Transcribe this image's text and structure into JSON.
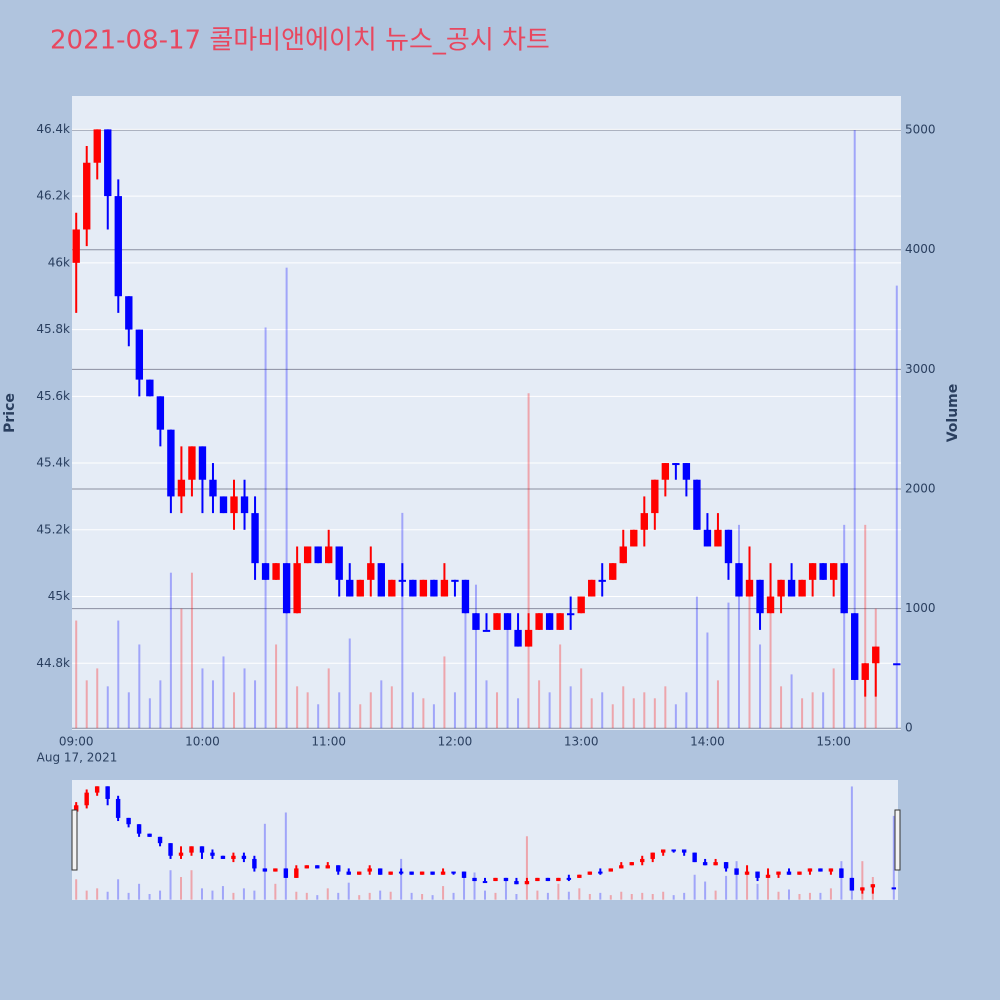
{
  "chart_data": {
    "type": "candlestick",
    "title": "2021-08-17 콜마비앤에이치 뉴스_공시 차트",
    "y_axis_label": "Price",
    "y2_axis_label": "Volume",
    "x_date_label": "Aug 17, 2021",
    "increasing_color": "#ff0000",
    "decreasing_color": "#0000ff",
    "x": [
      "2021-08-17 09:00",
      "2021-08-17 09:05",
      "2021-08-17 09:10",
      "2021-08-17 09:15",
      "2021-08-17 09:20",
      "2021-08-17 09:25",
      "2021-08-17 09:30",
      "2021-08-17 09:35",
      "2021-08-17 09:40",
      "2021-08-17 09:45",
      "2021-08-17 09:50",
      "2021-08-17 09:55",
      "2021-08-17 10:00",
      "2021-08-17 10:05",
      "2021-08-17 10:10",
      "2021-08-17 10:15",
      "2021-08-17 10:20",
      "2021-08-17 10:25",
      "2021-08-17 10:30",
      "2021-08-17 10:35",
      "2021-08-17 10:40",
      "2021-08-17 10:45",
      "2021-08-17 10:50",
      "2021-08-17 10:55",
      "2021-08-17 11:00",
      "2021-08-17 11:05",
      "2021-08-17 11:10",
      "2021-08-17 11:15",
      "2021-08-17 11:20",
      "2021-08-17 11:25",
      "2021-08-17 11:30",
      "2021-08-17 11:35",
      "2021-08-17 11:40",
      "2021-08-17 11:45",
      "2021-08-17 11:50",
      "2021-08-17 11:55",
      "2021-08-17 12:00",
      "2021-08-17 12:05",
      "2021-08-17 12:10",
      "2021-08-17 12:15",
      "2021-08-17 12:20",
      "2021-08-17 12:25",
      "2021-08-17 12:30",
      "2021-08-17 12:35",
      "2021-08-17 12:40",
      "2021-08-17 12:45",
      "2021-08-17 12:50",
      "2021-08-17 12:55",
      "2021-08-17 13:00",
      "2021-08-17 13:05",
      "2021-08-17 13:10",
      "2021-08-17 13:15",
      "2021-08-17 13:20",
      "2021-08-17 13:25",
      "2021-08-17 13:30",
      "2021-08-17 13:35",
      "2021-08-17 13:40",
      "2021-08-17 13:45",
      "2021-08-17 13:50",
      "2021-08-17 13:55",
      "2021-08-17 14:00",
      "2021-08-17 14:05",
      "2021-08-17 14:10",
      "2021-08-17 14:15",
      "2021-08-17 14:20",
      "2021-08-17 14:25",
      "2021-08-17 14:30",
      "2021-08-17 14:35",
      "2021-08-17 14:40",
      "2021-08-17 14:45",
      "2021-08-17 14:50",
      "2021-08-17 14:55",
      "2021-08-17 15:00",
      "2021-08-17 15:05",
      "2021-08-17 15:10",
      "2021-08-17 15:15",
      "2021-08-17 15:20",
      "2021-08-17 15:30"
    ],
    "open": [
      46000,
      46100,
      46300,
      46400,
      46200,
      45900,
      45800,
      45650,
      45600,
      45500,
      45300,
      45350,
      45450,
      45350,
      45300,
      45250,
      45300,
      45250,
      45100,
      45050,
      45100,
      44950,
      45100,
      45150,
      45100,
      45150,
      45050,
      45000,
      45050,
      45100,
      45000,
      45050,
      45050,
      45000,
      45050,
      45000,
      45050,
      45050,
      44950,
      44900,
      44900,
      44950,
      44900,
      44850,
      44900,
      44950,
      44900,
      44950,
      44950,
      45000,
      45050,
      45050,
      45100,
      45150,
      45200,
      45250,
      45350,
      45400,
      45400,
      45350,
      45200,
      45150,
      45200,
      45100,
      45000,
      45050,
      44950,
      45000,
      45050,
      45000,
      45050,
      45100,
      45050,
      45100,
      44950,
      44750,
      44800,
      44800
    ],
    "high": [
      46150,
      46350,
      46400,
      46400,
      46250,
      45900,
      45800,
      45650,
      45600,
      45500,
      45450,
      45450,
      45450,
      45400,
      45300,
      45350,
      45350,
      45300,
      45100,
      45100,
      45100,
      45150,
      45150,
      45150,
      45200,
      45150,
      45100,
      45050,
      45150,
      45100,
      45050,
      45100,
      45050,
      45050,
      45050,
      45100,
      45050,
      45050,
      44950,
      44950,
      44950,
      44950,
      44950,
      44950,
      44950,
      44950,
      44950,
      45000,
      45000,
      45050,
      45100,
      45100,
      45200,
      45200,
      45300,
      45350,
      45400,
      45400,
      45400,
      45350,
      45250,
      45250,
      45200,
      45100,
      45150,
      45050,
      45100,
      45050,
      45100,
      45050,
      45100,
      45100,
      45100,
      45100,
      44950,
      44800,
      44850,
      44800
    ],
    "low": [
      45850,
      46050,
      46250,
      46100,
      45850,
      45750,
      45600,
      45600,
      45450,
      45250,
      45250,
      45300,
      45250,
      45250,
      45250,
      45200,
      45200,
      45050,
      45050,
      45050,
      44950,
      44950,
      45100,
      45100,
      45100,
      45000,
      45000,
      45000,
      45000,
      45000,
      45000,
      45000,
      45000,
      45000,
      45000,
      45000,
      45000,
      44950,
      44900,
      44900,
      44900,
      44900,
      44850,
      44850,
      44900,
      44900,
      44900,
      44900,
      44950,
      45000,
      45000,
      45050,
      45100,
      45150,
      45150,
      45200,
      45300,
      45350,
      45300,
      45200,
      45150,
      45150,
      45050,
      45000,
      45000,
      44900,
      44950,
      44950,
      45000,
      45000,
      45000,
      45050,
      45000,
      44950,
      44750,
      44700,
      44700,
      44800
    ],
    "close": [
      46100,
      46300,
      46400,
      46200,
      45900,
      45800,
      45650,
      45600,
      45500,
      45300,
      45350,
      45450,
      45350,
      45300,
      45250,
      45300,
      45250,
      45100,
      45050,
      45100,
      44950,
      45100,
      45150,
      45100,
      45150,
      45050,
      45000,
      45050,
      45100,
      45000,
      45050,
      45050,
      45000,
      45050,
      45000,
      45050,
      45050,
      44950,
      44900,
      44900,
      44950,
      44900,
      44850,
      44900,
      44950,
      44900,
      44950,
      44950,
      45000,
      45050,
      45050,
      45100,
      45150,
      45200,
      45250,
      45350,
      45400,
      45400,
      45350,
      45200,
      45150,
      45200,
      45100,
      45000,
      45050,
      44950,
      45000,
      45050,
      45000,
      45050,
      45100,
      45050,
      45100,
      44950,
      44750,
      44800,
      44850,
      44800
    ],
    "volume": [
      900,
      400,
      500,
      350,
      900,
      300,
      700,
      250,
      400,
      1300,
      1000,
      1300,
      500,
      400,
      600,
      300,
      500,
      400,
      3350,
      700,
      3850,
      350,
      300,
      200,
      500,
      300,
      750,
      200,
      300,
      400,
      350,
      1800,
      300,
      250,
      200,
      600,
      300,
      1100,
      1200,
      400,
      300,
      900,
      250,
      2800,
      400,
      300,
      700,
      350,
      500,
      250,
      300,
      200,
      350,
      250,
      300,
      250,
      350,
      200,
      300,
      1100,
      800,
      400,
      1050,
      1700,
      1300,
      700,
      1000,
      350,
      450,
      250,
      300,
      300,
      500,
      1700,
      5000,
      1700,
      1000,
      3700
    ],
    "xlim": [
      "2021-08-17 08:58",
      "2021-08-17 15:32"
    ],
    "xticks": [
      {
        "value": "2021-08-17 09:00",
        "label": "09:00"
      },
      {
        "value": "2021-08-17 10:00",
        "label": "10:00"
      },
      {
        "value": "2021-08-17 11:00",
        "label": "11:00"
      },
      {
        "value": "2021-08-17 12:00",
        "label": "12:00"
      },
      {
        "value": "2021-08-17 13:00",
        "label": "13:00"
      },
      {
        "value": "2021-08-17 14:00",
        "label": "14:00"
      },
      {
        "value": "2021-08-17 15:00",
        "label": "15:00"
      }
    ],
    "ylim": [
      44600,
      46500
    ],
    "yticks": [
      {
        "value": 44800,
        "label": "44.8k"
      },
      {
        "value": 45000,
        "label": "45k"
      },
      {
        "value": 45200,
        "label": "45.2k"
      },
      {
        "value": 45400,
        "label": "45.4k"
      },
      {
        "value": 45600,
        "label": "45.6k"
      },
      {
        "value": 45800,
        "label": "45.8k"
      },
      {
        "value": 46000,
        "label": "46k"
      },
      {
        "value": 46200,
        "label": "46.2k"
      },
      {
        "value": 46400,
        "label": "46.4k"
      }
    ],
    "y2lim": [
      -15,
      5285
    ],
    "y2ticks": [
      0,
      1000,
      2000,
      3000,
      4000,
      5000
    ],
    "grid": true,
    "range_slider": true
  }
}
